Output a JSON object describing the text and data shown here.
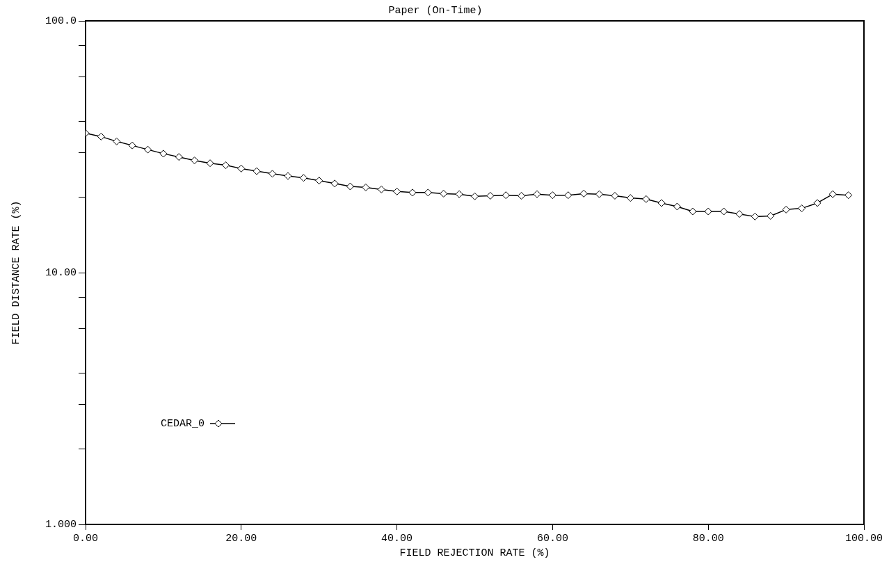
{
  "chart_data": {
    "type": "line",
    "title": "Paper (On-Time)",
    "xlabel": "FIELD REJECTION RATE (%)",
    "ylabel": "FIELD DISTANCE RATE (%)",
    "x": [
      0,
      2,
      4,
      6,
      8,
      10,
      12,
      14,
      16,
      18,
      20,
      22,
      24,
      26,
      28,
      30,
      32,
      34,
      36,
      38,
      40,
      42,
      44,
      46,
      48,
      50,
      52,
      54,
      56,
      58,
      60,
      62,
      64,
      66,
      68,
      70,
      72,
      74,
      76,
      78,
      80,
      82,
      84,
      86,
      88,
      90,
      92,
      94,
      96,
      98
    ],
    "series": [
      {
        "name": "CEDAR_0",
        "color": "#000000",
        "values": [
          35.8,
          34.7,
          33.2,
          32.0,
          30.8,
          29.7,
          28.8,
          27.9,
          27.2,
          26.7,
          25.9,
          25.3,
          24.7,
          24.2,
          23.8,
          23.2,
          22.6,
          22.0,
          21.8,
          21.4,
          21.0,
          20.8,
          20.8,
          20.6,
          20.5,
          20.1,
          20.2,
          20.3,
          20.2,
          20.5,
          20.3,
          20.3,
          20.6,
          20.5,
          20.2,
          19.8,
          19.6,
          18.9,
          18.3,
          17.5,
          17.5,
          17.5,
          17.1,
          16.7,
          16.8,
          17.8,
          18.0,
          18.9,
          20.5,
          20.3
        ]
      }
    ],
    "xlim": [
      0,
      100
    ],
    "xticks": [
      {
        "value": 0,
        "label": "0.00"
      },
      {
        "value": 20,
        "label": "20.00"
      },
      {
        "value": 40,
        "label": "40.00"
      },
      {
        "value": 60,
        "label": "60.00"
      },
      {
        "value": 80,
        "label": "80.00"
      },
      {
        "value": 100,
        "label": "100.00"
      }
    ],
    "ylim": [
      1,
      100
    ],
    "yticks": [
      {
        "value": 1,
        "label": "1.000"
      },
      {
        "value": 2,
        "label": null
      },
      {
        "value": 3,
        "label": null
      },
      {
        "value": 4,
        "label": null
      },
      {
        "value": 6,
        "label": null
      },
      {
        "value": 8,
        "label": null
      },
      {
        "value": 10,
        "label": "10.00"
      },
      {
        "value": 20,
        "label": null
      },
      {
        "value": 30,
        "label": null
      },
      {
        "value": 40,
        "label": null
      },
      {
        "value": 60,
        "label": null
      },
      {
        "value": 80,
        "label": null
      },
      {
        "value": 100,
        "label": "100.0"
      }
    ],
    "log": true,
    "grid": false,
    "legend": "bottom left",
    "marker": "diamond",
    "line_style": "solid"
  }
}
